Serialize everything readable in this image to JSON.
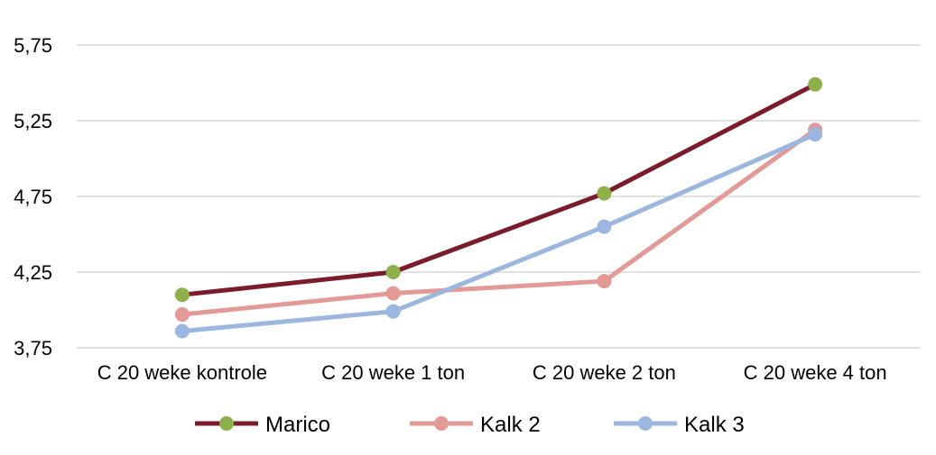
{
  "chart_data": {
    "type": "line",
    "title": "",
    "xlabel": "",
    "ylabel": "",
    "categories": [
      "C 20 weke kontrole",
      "C 20 weke 1 ton",
      "C 20 weke 2 ton",
      "C 20 weke 4 ton"
    ],
    "ylim": [
      3.75,
      5.75
    ],
    "yticks": [
      3.75,
      4.25,
      4.75,
      5.25,
      5.75
    ],
    "ytick_labels": [
      "3,75",
      "4,25",
      "4,75",
      "5,25",
      "5,75"
    ],
    "grid": "horizontal",
    "legend_position": "bottom",
    "series": [
      {
        "name": "Marico",
        "values": [
          4.1,
          4.25,
          4.77,
          5.49
        ],
        "line_color": "#7B1C2A",
        "marker_color": "#8DB04A"
      },
      {
        "name": "Kalk 2",
        "values": [
          3.97,
          4.11,
          4.19,
          5.19
        ],
        "line_color": "#E39A96",
        "marker_color": "#E39A96"
      },
      {
        "name": "Kalk 3",
        "values": [
          3.86,
          3.99,
          4.55,
          5.16
        ],
        "line_color": "#9BB7E0",
        "marker_color": "#9BB7E0"
      }
    ]
  }
}
